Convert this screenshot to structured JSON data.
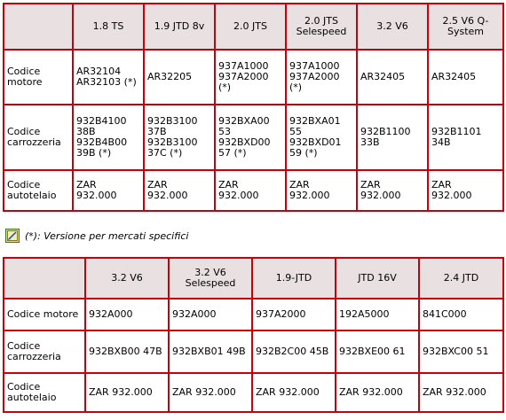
{
  "table1": {
    "headers": [
      "",
      "1.8 TS",
      "1.9 JTD 8v",
      "2.0 JTS",
      "2.0 JTS\nSelespeed",
      "3.2 V6",
      "2.5 V6 Q-\nSystem"
    ],
    "rows": [
      [
        "Codice\nmotore",
        "AR32104\nAR32103 (*)",
        "AR32205",
        "937A1000\n937A2000\n(*)",
        "937A1000\n937A2000\n(*)",
        "AR32405",
        "AR32405"
      ],
      [
        "Codice\ncarrozzeria",
        "932B4100\n38B\n932B4B00\n39B (*)",
        "932B3100\n37B\n932B3100\n37C (*)",
        "932BXA00\n53\n932BXD00\n57 (*)",
        "932BXA01\n55\n932BXD01\n59 (*)",
        "932B1100\n33B",
        "932B1101\n34B"
      ],
      [
        "Codice\nautotelaio",
        "ZAR\n932.000",
        "ZAR\n932.000",
        "ZAR\n932.000",
        "ZAR\n932.000",
        "ZAR\n932.000",
        "ZAR\n932.000"
      ]
    ]
  },
  "note": {
    "icon": "notepad-icon",
    "text": "(*): Versione per mercati specifici"
  },
  "table2": {
    "headers": [
      "",
      "3.2 V6",
      "3.2 V6\nSelespeed",
      "1.9-JTD",
      "JTD 16V",
      "2.4 JTD"
    ],
    "rows": [
      [
        "Codice motore",
        "932A000",
        "932A000",
        "937A2000",
        "192A5000",
        "841C000"
      ],
      [
        "Codice\ncarrozzeria",
        "932BXB00 47B",
        "932BXB01 49B",
        "932B2C00 45B",
        "932BXE00 61",
        "932BXC00 51"
      ],
      [
        "Codice\nautotelaio",
        "ZAR 932.000",
        "ZAR 932.000",
        "ZAR 932.000",
        "ZAR 932.000",
        "ZAR 932.000"
      ]
    ]
  }
}
